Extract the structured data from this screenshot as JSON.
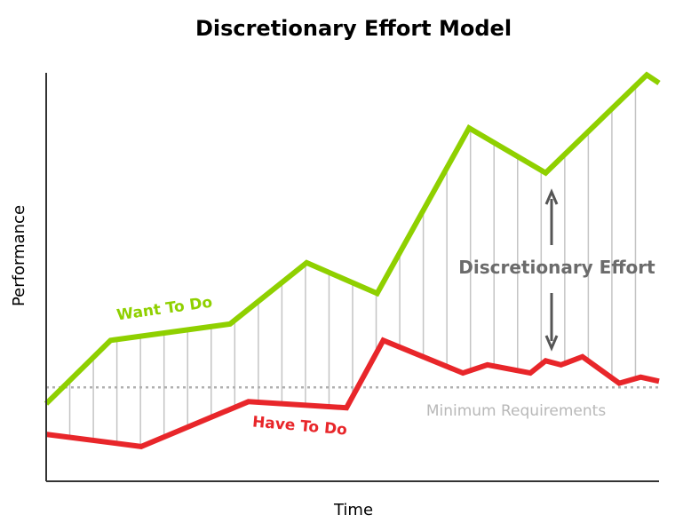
{
  "title": "Discretionary Effort Model",
  "colors": {
    "want": "#8fd000",
    "have": "#e8262a",
    "axis": "#333333",
    "fill_lines": "#c4c4c4",
    "min_line": "#b0b0b0",
    "annotation": "#6b6b6b",
    "arrow": "#555555"
  },
  "chart_data": {
    "type": "line",
    "xlabel": "Time",
    "ylabel": "Performance",
    "x": [
      0,
      0.105,
      0.3,
      0.425,
      0.54,
      0.69,
      0.815,
      1
    ],
    "series": [
      {
        "name": "Want To Do",
        "x": [
          0,
          0.105,
          0.3,
          0.425,
          0.54,
          0.69,
          0.815,
          0.98,
          1
        ],
        "values": [
          0.19,
          0.345,
          0.385,
          0.535,
          0.46,
          0.865,
          0.755,
          0.995,
          0.975
        ]
      },
      {
        "name": "Have To Do",
        "x": [
          0,
          0.155,
          0.33,
          0.49,
          0.55,
          0.68,
          0.72,
          0.79,
          0.815,
          0.84,
          0.875,
          0.935,
          0.97,
          1
        ],
        "values": [
          0.115,
          0.085,
          0.195,
          0.18,
          0.345,
          0.265,
          0.285,
          0.265,
          0.295,
          0.285,
          0.305,
          0.24,
          0.255,
          0.245
        ]
      }
    ],
    "minimum_requirement": 0.23,
    "ylim": [
      0,
      1
    ],
    "xlim": [
      0,
      1
    ],
    "grid": false
  },
  "annotations": {
    "discretionary": "Discretionary Effort",
    "minimum": "Minimum Requirements"
  }
}
